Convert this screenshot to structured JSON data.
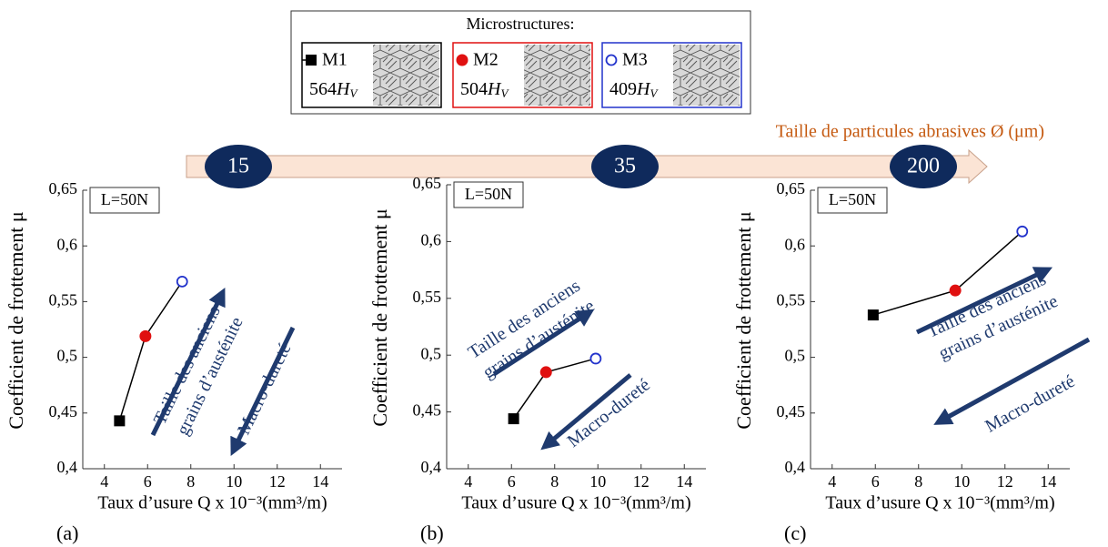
{
  "legend": {
    "title": "Microstructures:",
    "entries": [
      {
        "name": "M1",
        "hardness": 564,
        "unit": "H",
        "unit_sub": "V",
        "color": "#000000",
        "shape": "square"
      },
      {
        "name": "M2",
        "hardness": 504,
        "unit": "H",
        "unit_sub": "V",
        "color": "#e01010",
        "shape": "circle"
      },
      {
        "name": "M3",
        "hardness": 409,
        "unit": "H",
        "unit_sub": "V",
        "color": "#2233cc",
        "shape": "open-circle"
      }
    ]
  },
  "size_axis": {
    "label": "Taille de particules abrasives Ø (μm)",
    "sizes": [
      15,
      35,
      200
    ]
  },
  "chart_data": [
    {
      "type": "line",
      "panel": "(a)",
      "load_label": "L=50N",
      "xlabel": "Taux d’usure Q x 10⁻³(mm³/m)",
      "ylabel": "Coefficient de frottement μ",
      "annotations": [
        "Taille des anciens",
        "grains d’austénite",
        "Macro-dureté"
      ],
      "x": [
        4.7,
        5.9,
        7.6
      ],
      "values": [
        0.443,
        0.519,
        0.568
      ],
      "xlim": [
        3,
        15
      ],
      "xticks": [
        4,
        6,
        8,
        10,
        12,
        14
      ],
      "ylim": [
        0.4,
        0.65
      ],
      "yticks": [
        {
          "value": 0.4,
          "label": "0,4"
        },
        {
          "value": 0.45,
          "label": "0,45"
        },
        {
          "value": 0.5,
          "label": "0,5"
        },
        {
          "value": 0.55,
          "label": "0,55"
        },
        {
          "value": 0.6,
          "label": "0,6"
        },
        {
          "value": 0.65,
          "label": "0,65"
        }
      ]
    },
    {
      "type": "line",
      "panel": "(b)",
      "load_label": "L=50N",
      "xlabel": "Taux d’usure Q x 10⁻³(mm³/m)",
      "ylabel": "Coefficient de frottement μ",
      "annotations": [
        "Taille des anciens",
        "grains d’austénite",
        "Macro-dureté"
      ],
      "x": [
        6.1,
        7.6,
        9.9
      ],
      "values": [
        0.444,
        0.485,
        0.497
      ],
      "xlim": [
        3,
        15
      ],
      "xticks": [
        4,
        6,
        8,
        10,
        12,
        14
      ],
      "ylim": [
        0.4,
        0.65
      ],
      "yticks": [
        {
          "value": 0.4,
          "label": "0,4"
        },
        {
          "value": 0.45,
          "label": "0,45"
        },
        {
          "value": 0.5,
          "label": "0,5"
        },
        {
          "value": 0.55,
          "label": "0,55"
        },
        {
          "value": 0.6,
          "label": "0,6"
        },
        {
          "value": 0.65,
          "label": "0,65"
        }
      ]
    },
    {
      "type": "line",
      "panel": "(c)",
      "load_label": "L=50N",
      "xlabel": "Taux d’usure Q x 10⁻³(mm³/m)",
      "ylabel": "Coefficient de frottement μ",
      "annotations": [
        "Taille des anciens",
        "grains d’austénite",
        "Macro-dureté"
      ],
      "x": [
        5.9,
        9.7,
        12.8
      ],
      "values": [
        0.538,
        0.56,
        0.613
      ],
      "xlim": [
        3,
        15
      ],
      "xticks": [
        4,
        6,
        8,
        10,
        12,
        14
      ],
      "ylim": [
        0.4,
        0.65
      ],
      "yticks": [
        {
          "value": 0.4,
          "label": "0,4"
        },
        {
          "value": 0.45,
          "label": "0,45"
        },
        {
          "value": 0.5,
          "label": "0,5"
        },
        {
          "value": 0.55,
          "label": "0,55"
        },
        {
          "value": 0.6,
          "label": "0,6"
        },
        {
          "value": 0.65,
          "label": "0,65"
        }
      ]
    }
  ]
}
